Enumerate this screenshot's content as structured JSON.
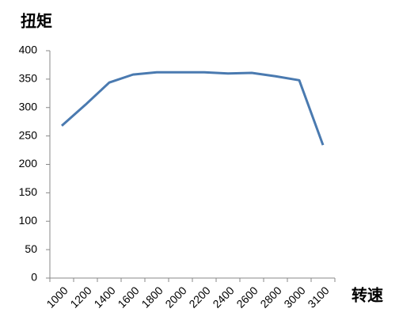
{
  "chart_data": {
    "type": "line",
    "y_title": "扭矩",
    "x_title": "转速",
    "categories": [
      "1000",
      "1200",
      "1400",
      "1600",
      "1800",
      "2000",
      "2200",
      "2400",
      "2600",
      "2800",
      "3000",
      "3100"
    ],
    "series": [
      {
        "name": "扭矩",
        "color": "#4a7ab0",
        "values": [
          268,
          305,
          344,
          358,
          362,
          362,
          362,
          360,
          361,
          355,
          348,
          234
        ]
      }
    ],
    "ylim": [
      0,
      400
    ],
    "yticks": [
      0,
      50,
      100,
      150,
      200,
      250,
      300,
      350,
      400
    ],
    "grid": false
  }
}
